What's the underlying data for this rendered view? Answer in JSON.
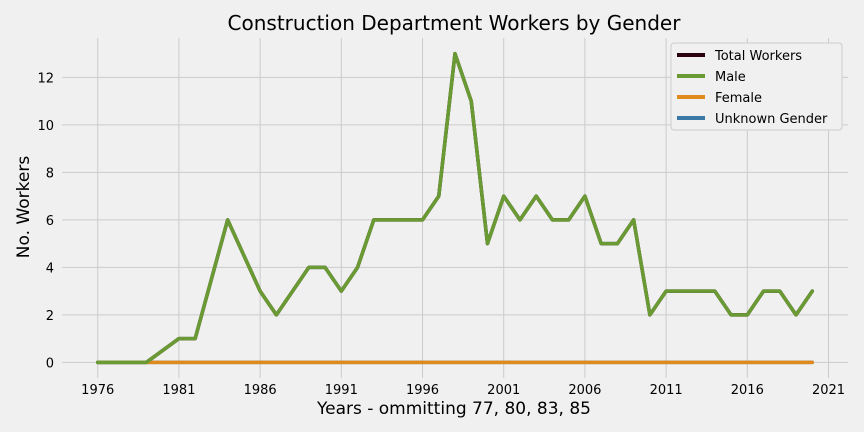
{
  "chart_data": {
    "type": "line",
    "title": "Construction Department Workers by Gender",
    "xlabel": "Years - ommitting 77, 80, 83, 85",
    "ylabel": "No. Workers",
    "xlim": [
      1973.8,
      1822.2
    ],
    "ylim": [
      -0.66,
      13.66
    ],
    "x_ticks": [
      1976,
      1981,
      1986,
      1991,
      1996,
      2001,
      2006,
      2011,
      2016,
      2021
    ],
    "y_ticks": [
      0,
      2,
      4,
      6,
      8,
      10,
      12
    ],
    "grid": true,
    "legend_position": "top-right",
    "x": [
      1976,
      1977,
      1978,
      1979,
      1980,
      1981,
      1982,
      1983,
      1984,
      1985,
      1986,
      1987,
      1988,
      1989,
      1990,
      1991,
      1992,
      1993,
      1994,
      1995,
      1996,
      1997,
      1998,
      1999,
      2000,
      2001,
      2002,
      2003,
      2004,
      2005,
      2006,
      2007,
      2008,
      2009,
      2010,
      2011,
      2012,
      2013,
      2014,
      2015,
      2016,
      2017,
      2018,
      2019,
      2020
    ],
    "series": [
      {
        "name": "Total Workers",
        "color": "#2b0010",
        "values": [
          0,
          0,
          0,
          0,
          0.5,
          1,
          1,
          3.5,
          6,
          4.5,
          3,
          2,
          3,
          4,
          4,
          3,
          4,
          6,
          6,
          6,
          6,
          7,
          13,
          11,
          5,
          7,
          6,
          7,
          6,
          6,
          7,
          5,
          5,
          6,
          2,
          3,
          3,
          3,
          3,
          2,
          2,
          3,
          3,
          2,
          3
        ]
      },
      {
        "name": "Male",
        "color": "#6a9a33",
        "values": [
          0,
          0,
          0,
          0,
          0.5,
          1,
          1,
          3.5,
          6,
          4.5,
          3,
          2,
          3,
          4,
          4,
          3,
          4,
          6,
          6,
          6,
          6,
          7,
          13,
          11,
          5,
          7,
          6,
          7,
          6,
          6,
          7,
          5,
          5,
          6,
          2,
          3,
          3,
          3,
          3,
          2,
          2,
          3,
          3,
          2,
          3
        ]
      },
      {
        "name": "Female",
        "color": "#e08a1e",
        "values": [
          0,
          0,
          0,
          0,
          0,
          0,
          0,
          0,
          0,
          0,
          0,
          0,
          0,
          0,
          0,
          0,
          0,
          0,
          0,
          0,
          0,
          0,
          0,
          0,
          0,
          0,
          0,
          0,
          0,
          0,
          0,
          0,
          0,
          0,
          0,
          0,
          0,
          0,
          0,
          0,
          0,
          0,
          0,
          0,
          0
        ]
      },
      {
        "name": "Unknown Gender",
        "color": "#3a78a6",
        "values": [
          0,
          0,
          0,
          0,
          0,
          0,
          0,
          0,
          0,
          0,
          0,
          0,
          0,
          0,
          0,
          0,
          0,
          0,
          0,
          0,
          0,
          0,
          0,
          0,
          0,
          0,
          0,
          0,
          0,
          0,
          0,
          0,
          0,
          0,
          0,
          0,
          0,
          0,
          0,
          0,
          0,
          0,
          0,
          0,
          0
        ]
      }
    ]
  }
}
